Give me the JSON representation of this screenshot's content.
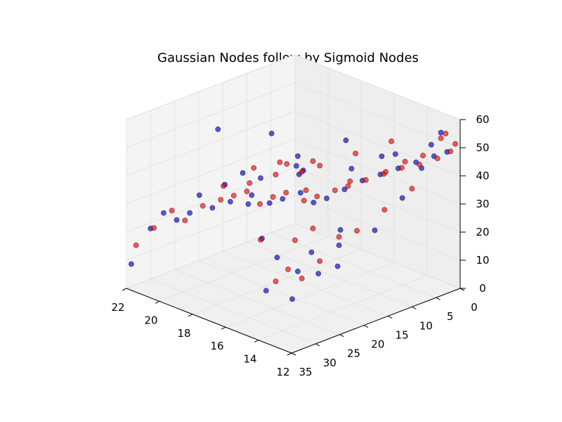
{
  "chart_data": {
    "type": "scatter",
    "projection": "3d",
    "title": "Gaussian Nodes follow by Sigmoid Nodes",
    "xlabel": "",
    "ylabel": "",
    "zlabel": "",
    "xlim": [
      12,
      22
    ],
    "ylim": [
      0,
      35
    ],
    "zlim": [
      0,
      60
    ],
    "x_ticks": [
      "12",
      "14",
      "16",
      "18",
      "20",
      "22"
    ],
    "y_ticks": [
      "0",
      "5",
      "10",
      "15",
      "20",
      "25",
      "30",
      "35"
    ],
    "z_ticks": [
      "0",
      "10",
      "20",
      "30",
      "40",
      "50",
      "60"
    ],
    "grid": true,
    "colors": {
      "series_a": "#0000cc",
      "series_b": "#ff0000",
      "pane": "#f2f2f2",
      "grid": "#e0e0e0"
    },
    "series": [
      {
        "color": "#0000cc",
        "points": [
          [
            22,
            34,
            8
          ],
          [
            22,
            30,
            18
          ],
          [
            21.5,
            29,
            24
          ],
          [
            21,
            28,
            22
          ],
          [
            20.5,
            27,
            25
          ],
          [
            20.5,
            25,
            30
          ],
          [
            20,
            24,
            26
          ],
          [
            19.5,
            22,
            28
          ],
          [
            19,
            20,
            27
          ],
          [
            18.5,
            21,
            32
          ],
          [
            18,
            19,
            29
          ],
          [
            17.5,
            18,
            31
          ],
          [
            17,
            16,
            33
          ],
          [
            16.5,
            15,
            30
          ],
          [
            16,
            14,
            32
          ],
          [
            15.5,
            12,
            35
          ],
          [
            15,
            10,
            38
          ],
          [
            14.5,
            8,
            40
          ],
          [
            14,
            6,
            42
          ],
          [
            13.5,
            4,
            44
          ],
          [
            13,
            2,
            46
          ],
          [
            12.5,
            1,
            48
          ],
          [
            16,
            20,
            10
          ],
          [
            14,
            28,
            10
          ],
          [
            15,
            30,
            12
          ],
          [
            13,
            22,
            20
          ],
          [
            13.5,
            20,
            25
          ],
          [
            14,
            18,
            28
          ],
          [
            12.5,
            16,
            30
          ],
          [
            12,
            12,
            40
          ],
          [
            12,
            8,
            48
          ],
          [
            12,
            6,
            55
          ],
          [
            12,
            4,
            58
          ],
          [
            13,
            10,
            52
          ],
          [
            14.5,
            14,
            46
          ],
          [
            16.5,
            18,
            42
          ],
          [
            18,
            12,
            36
          ],
          [
            19,
            10,
            34
          ],
          [
            20,
            14,
            30
          ],
          [
            21,
            18,
            28
          ],
          [
            17,
            24,
            22
          ],
          [
            15.5,
            26,
            20
          ],
          [
            14,
            24,
            24
          ],
          [
            13,
            26,
            20
          ],
          [
            18.5,
            28,
            60
          ],
          [
            17,
            22,
            58
          ],
          [
            16,
            10,
            50
          ],
          [
            15,
            6,
            44
          ],
          [
            19.5,
            8,
            35
          ],
          [
            20.5,
            16,
            32
          ]
        ]
      },
      {
        "color": "#ff0000",
        "points": [
          [
            22,
            33,
            14
          ],
          [
            21.5,
            31,
            20
          ],
          [
            21,
            29,
            26
          ],
          [
            20.5,
            28,
            23
          ],
          [
            20,
            26,
            28
          ],
          [
            19.5,
            24,
            30
          ],
          [
            19,
            23,
            32
          ],
          [
            18.5,
            22,
            34
          ],
          [
            18,
            21,
            30
          ],
          [
            17.5,
            20,
            33
          ],
          [
            17,
            19,
            35
          ],
          [
            16.5,
            17,
            32
          ],
          [
            16,
            16,
            34
          ],
          [
            15.5,
            14,
            36
          ],
          [
            15,
            13,
            38
          ],
          [
            14.5,
            11,
            40
          ],
          [
            14,
            9,
            42
          ],
          [
            13.5,
            7,
            44
          ],
          [
            13,
            5,
            45
          ],
          [
            12.5,
            3,
            47
          ],
          [
            12,
            2,
            50
          ],
          [
            12,
            1,
            52
          ],
          [
            12.5,
            6,
            50
          ],
          [
            13,
            8,
            48
          ],
          [
            16,
            22,
            12
          ],
          [
            15,
            28,
            14
          ],
          [
            14,
            26,
            16
          ],
          [
            13.5,
            24,
            22
          ],
          [
            13,
            18,
            30
          ],
          [
            12.5,
            14,
            36
          ],
          [
            12,
            10,
            42
          ],
          [
            12,
            4,
            56
          ],
          [
            12,
            3,
            57
          ],
          [
            13,
            12,
            47
          ],
          [
            14,
            16,
            44
          ],
          [
            15.5,
            20,
            40
          ],
          [
            17.5,
            14,
            38
          ],
          [
            18.5,
            16,
            36
          ],
          [
            19.5,
            18,
            32
          ],
          [
            20.5,
            20,
            30
          ],
          [
            16.5,
            26,
            24
          ],
          [
            15,
            24,
            26
          ],
          [
            14.5,
            22,
            30
          ],
          [
            13.5,
            20,
            28
          ],
          [
            17,
            12,
            40
          ],
          [
            18,
            10,
            38
          ],
          [
            19,
            12,
            36
          ],
          [
            20,
            10,
            33
          ],
          [
            21,
            12,
            30
          ],
          [
            16,
            8,
            44
          ],
          [
            15,
            4,
            48
          ]
        ]
      }
    ]
  }
}
